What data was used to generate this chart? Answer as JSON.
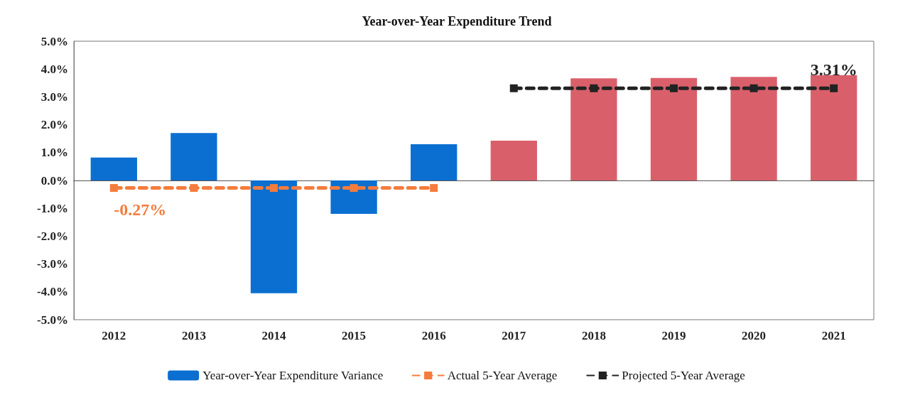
{
  "chart_data": {
    "type": "bar",
    "title": "Year-over-Year Expenditure Trend",
    "categories": [
      "2012",
      "2013",
      "2014",
      "2015",
      "2016",
      "2017",
      "2018",
      "2019",
      "2020",
      "2021"
    ],
    "series": [
      {
        "name": "Year-over-Year Expenditure Variance",
        "color": "#0a6fd0",
        "colors": [
          "#0a6fd0",
          "#0a6fd0",
          "#0a6fd0",
          "#0a6fd0",
          "#0a6fd0",
          "#d9606b",
          "#d9606b",
          "#d9606b",
          "#d9606b",
          "#d9606b"
        ],
        "values": [
          0.82,
          1.7,
          -4.05,
          -1.2,
          1.3,
          1.43,
          3.67,
          3.68,
          3.72,
          3.78
        ]
      },
      {
        "name": "Actual 5-Year Average",
        "type": "line",
        "color": "#f47c3c",
        "line_style": "dashed",
        "marker": "square",
        "values": [
          -0.27,
          -0.27,
          -0.27,
          -0.27,
          -0.27,
          null,
          null,
          null,
          null,
          null
        ]
      },
      {
        "name": "Projected 5-Year Average",
        "type": "line",
        "color": "#222222",
        "line_style": "dashed",
        "marker": "square",
        "values": [
          null,
          null,
          null,
          null,
          null,
          3.31,
          3.31,
          3.31,
          3.31,
          3.31
        ]
      }
    ],
    "ylim": [
      -5,
      5
    ],
    "yticks": [
      {
        "value": -5,
        "label": "-5.0%"
      },
      {
        "value": -4,
        "label": "-4.0%"
      },
      {
        "value": -3,
        "label": "-3.0%"
      },
      {
        "value": -2,
        "label": "-2.0%"
      },
      {
        "value": -1,
        "label": "-1.0%"
      },
      {
        "value": 0,
        "label": "0.0%"
      },
      {
        "value": 1,
        "label": "1.0%"
      },
      {
        "value": 2,
        "label": "2.0%"
      },
      {
        "value": 3,
        "label": "3.0%"
      },
      {
        "value": 4,
        "label": "4.0%"
      },
      {
        "value": 5,
        "label": "5.0%"
      }
    ],
    "annotations": [
      {
        "text": "-0.27%",
        "x": "2012",
        "y": -0.27
      },
      {
        "text": "3.31%",
        "x": "2021",
        "y": 3.31
      }
    ],
    "legend": "bottom"
  }
}
